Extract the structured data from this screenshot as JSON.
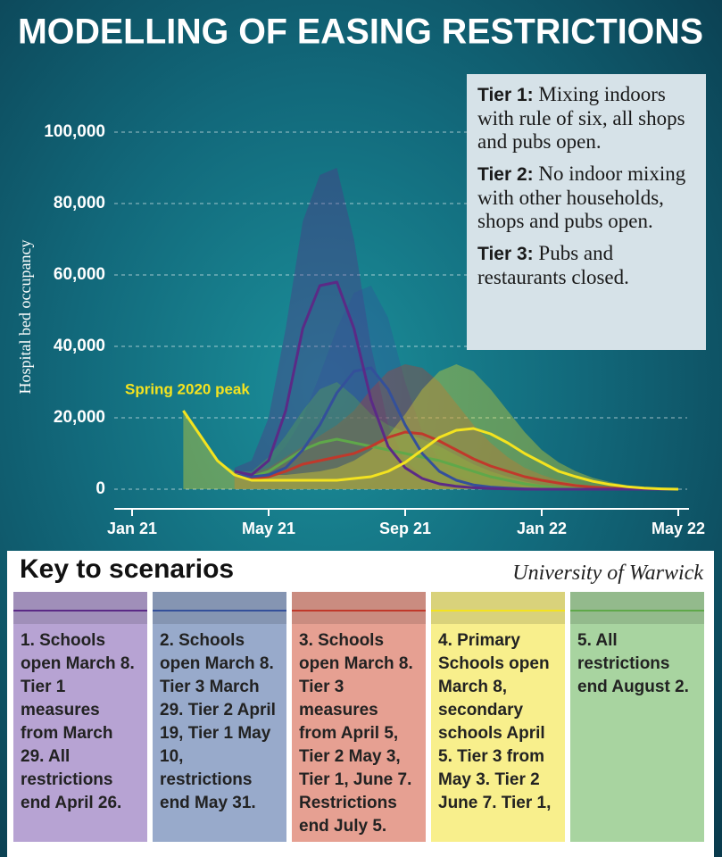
{
  "chart_data": {
    "type": "line",
    "title": "MODELLING OF EASING RESTRICTIONS",
    "y_label": "Hospital bed occupancy",
    "annotation": "Spring 2020 peak",
    "categories": [
      "Jan 21",
      null,
      null,
      null,
      null,
      null,
      null,
      null,
      "May 21",
      null,
      null,
      null,
      null,
      null,
      null,
      null,
      "Sep 21",
      null,
      null,
      null,
      null,
      null,
      null,
      null,
      "Jan 22",
      null,
      null,
      null,
      null,
      null,
      null,
      null,
      "May 22"
    ],
    "ylim": [
      0,
      100000
    ],
    "yticks": [
      0,
      {
        "value": 20000,
        "label": "20,000"
      },
      {
        "value": 40000,
        "label": "40,000"
      },
      {
        "value": 60000,
        "label": "60,000"
      },
      {
        "value": 80000,
        "label": "80,000"
      },
      {
        "value": 100000,
        "label": "100,000"
      }
    ],
    "grid": true,
    "series": [
      {
        "name": "1. Schools open March 8. Tier 1 measures from March 29. All restrictions end April 26.",
        "color": "#5b2a86",
        "key_color": "#b7a3d3",
        "values": [
          null,
          null,
          null,
          null,
          null,
          null,
          5000,
          4000,
          8000,
          22000,
          45000,
          57000,
          58000,
          45000,
          25000,
          12000,
          6000,
          3000,
          1500,
          800,
          400,
          200,
          100,
          0,
          0,
          0,
          0,
          0,
          0,
          0,
          0,
          0,
          0
        ],
        "upper": [
          null,
          null,
          null,
          null,
          null,
          null,
          6000,
          8000,
          20000,
          45000,
          75000,
          88000,
          90000,
          70000,
          40000,
          18000,
          8000,
          4000,
          2000,
          1000,
          500,
          200,
          0,
          0,
          0,
          0,
          0,
          0,
          0,
          0,
          0,
          0,
          0
        ]
      },
      {
        "name": "2. Schools open March 8. Tier 3 March 29. Tier 2 April 19, Tier 1 May 10, restrictions end May 31.",
        "color": "#34509a",
        "key_color": "#98aacb",
        "values": [
          null,
          null,
          null,
          null,
          null,
          null,
          4000,
          3500,
          4000,
          6000,
          11000,
          18000,
          27000,
          33000,
          34000,
          28000,
          18000,
          10000,
          5000,
          2500,
          1200,
          600,
          300,
          100,
          0,
          0,
          0,
          0,
          0,
          0,
          0,
          0,
          0
        ],
        "upper": [
          null,
          null,
          null,
          null,
          null,
          null,
          5000,
          5000,
          7000,
          12000,
          20000,
          32000,
          45000,
          55000,
          57000,
          48000,
          30000,
          16000,
          8000,
          4000,
          2000,
          1000,
          500,
          200,
          0,
          0,
          0,
          0,
          0,
          0,
          0,
          0,
          0
        ]
      },
      {
        "name": "3. Schools open March 8. Tier 3 measures from April 5, Tier 2 May 3, Tier 1, June 7. Restrictions end July 5.",
        "color": "#c0392b",
        "key_color": "#e6a092",
        "values": [
          null,
          null,
          null,
          null,
          null,
          null,
          4000,
          3000,
          3500,
          5000,
          7000,
          8000,
          9000,
          10000,
          12000,
          14500,
          16000,
          15500,
          13500,
          11000,
          8500,
          6500,
          5000,
          3500,
          2500,
          1700,
          1000,
          600,
          300,
          150,
          50,
          0,
          0
        ],
        "upper": [
          null,
          null,
          null,
          null,
          null,
          null,
          5000,
          4500,
          6000,
          9000,
          12000,
          15000,
          18000,
          22000,
          28000,
          33000,
          35000,
          34000,
          30000,
          24000,
          18000,
          13000,
          9000,
          6000,
          4000,
          2500,
          1500,
          800,
          400,
          200,
          100,
          0,
          0
        ]
      },
      {
        "name": "4. Primary Schools open March 8, secondary schools April 5. Tier 3 from May 3. Tier 2 June 7. Tier 1,",
        "color": "#f4e31f",
        "key_color": "#f8ef8c",
        "values": [
          null,
          null,
          null,
          22000,
          15000,
          8000,
          4000,
          2500,
          2500,
          2500,
          2500,
          2500,
          2500,
          3000,
          3500,
          5000,
          7500,
          11000,
          14500,
          16500,
          17000,
          15500,
          13000,
          10000,
          7500,
          5000,
          3500,
          2200,
          1300,
          700,
          300,
          100,
          0
        ],
        "upper": [
          null,
          null,
          null,
          22000,
          15000,
          8000,
          5000,
          4000,
          4000,
          4000,
          4500,
          5000,
          6000,
          8000,
          11000,
          15000,
          21000,
          28000,
          33000,
          35000,
          33000,
          28000,
          22000,
          16000,
          11000,
          7500,
          5000,
          3200,
          2000,
          1100,
          500,
          200,
          0
        ]
      },
      {
        "name": "5. All restrictions end August 2.",
        "color": "#5fa84a",
        "key_color": "#a8d4a0",
        "values": [
          null,
          null,
          null,
          null,
          null,
          null,
          4000,
          3500,
          5000,
          8000,
          11000,
          13000,
          14000,
          13000,
          12000,
          11000,
          10000,
          9000,
          8000,
          6500,
          5000,
          3500,
          2500,
          1500,
          800,
          400,
          200,
          100,
          0,
          0,
          0,
          0,
          0
        ],
        "upper": [
          null,
          null,
          null,
          null,
          null,
          null,
          5000,
          5000,
          9000,
          15000,
          22000,
          28000,
          30000,
          26000,
          21000,
          18000,
          16000,
          14000,
          12000,
          9500,
          7000,
          5000,
          3500,
          2200,
          1200,
          600,
          300,
          150,
          0,
          0,
          0,
          0,
          0
        ]
      }
    ]
  },
  "tiers": [
    {
      "label": "Tier 1:",
      "text": "Mixing indoors with rule of six, all shops and pubs open."
    },
    {
      "label": "Tier 2:",
      "text": "No indoor mixing with other households, shops and pubs open."
    },
    {
      "label": "Tier 3:",
      "text": "Pubs and restaurants closed."
    }
  ],
  "key": {
    "title": "Key to scenarios",
    "source": "University of Warwick"
  }
}
